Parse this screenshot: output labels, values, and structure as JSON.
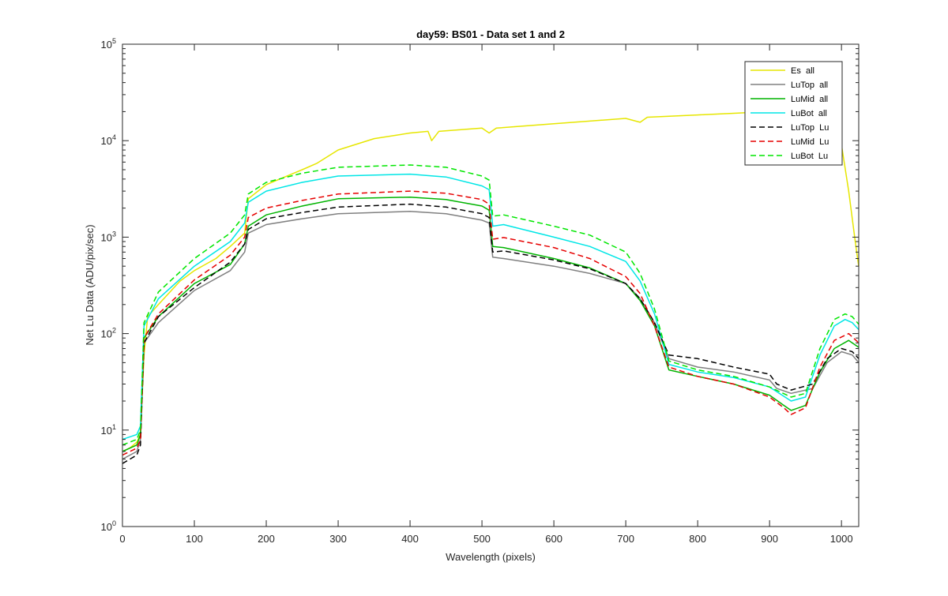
{
  "chart_data": {
    "type": "line",
    "title": "day59: BS01 - Data set 1 and 2",
    "xlabel": "Wavelength (pixels)",
    "ylabel": "Net Lu Data (ADU/pix/sec)",
    "xlim": [
      0,
      1024
    ],
    "ylim": [
      1,
      100000
    ],
    "yscale": "log",
    "xticks": [
      0,
      100,
      200,
      300,
      400,
      500,
      600,
      700,
      800,
      900,
      1000
    ],
    "yticks": [
      {
        "value": 1,
        "base": "10",
        "exp": "0"
      },
      {
        "value": 10,
        "base": "10",
        "exp": "1"
      },
      {
        "value": 100,
        "base": "10",
        "exp": "2"
      },
      {
        "value": 1000,
        "base": "10",
        "exp": "3"
      },
      {
        "value": 10000,
        "base": "10",
        "exp": "4"
      },
      {
        "value": 100000,
        "base": "10",
        "exp": "5"
      }
    ],
    "grid": false,
    "legend_position": "top-right",
    "series": [
      {
        "name": "Es  all",
        "color": "#e6e600",
        "dash": "solid",
        "points": [
          [
            0,
            6
          ],
          [
            10,
            6.5
          ],
          [
            20,
            7.5
          ],
          [
            25,
            9
          ],
          [
            30,
            60
          ],
          [
            35,
            150
          ],
          [
            50,
            200
          ],
          [
            80,
            350
          ],
          [
            100,
            450
          ],
          [
            130,
            600
          ],
          [
            150,
            800
          ],
          [
            170,
            1100
          ],
          [
            175,
            2500
          ],
          [
            200,
            3500
          ],
          [
            250,
            5000
          ],
          [
            270,
            5800
          ],
          [
            300,
            8000
          ],
          [
            350,
            10500
          ],
          [
            400,
            12000
          ],
          [
            425,
            12500
          ],
          [
            430,
            10000
          ],
          [
            440,
            12500
          ],
          [
            500,
            13500
          ],
          [
            510,
            12000
          ],
          [
            520,
            13500
          ],
          [
            600,
            15000
          ],
          [
            700,
            17000
          ],
          [
            720,
            15500
          ],
          [
            730,
            17500
          ],
          [
            800,
            18500
          ],
          [
            900,
            20000
          ],
          [
            950,
            20500
          ],
          [
            990,
            14000
          ],
          [
            1000,
            9000
          ],
          [
            1010,
            3000
          ],
          [
            1020,
            800
          ],
          [
            1024,
            500
          ]
        ]
      },
      {
        "name": "LuTop  all",
        "color": "#808080",
        "dash": "solid",
        "points": [
          [
            0,
            5
          ],
          [
            20,
            6
          ],
          [
            25,
            8
          ],
          [
            30,
            80
          ],
          [
            50,
            130
          ],
          [
            100,
            280
          ],
          [
            150,
            450
          ],
          [
            170,
            700
          ],
          [
            175,
            1100
          ],
          [
            200,
            1350
          ],
          [
            250,
            1550
          ],
          [
            300,
            1750
          ],
          [
            400,
            1850
          ],
          [
            450,
            1750
          ],
          [
            500,
            1500
          ],
          [
            510,
            1400
          ],
          [
            515,
            620
          ],
          [
            530,
            600
          ],
          [
            600,
            500
          ],
          [
            650,
            420
          ],
          [
            700,
            330
          ],
          [
            720,
            230
          ],
          [
            740,
            130
          ],
          [
            760,
            55
          ],
          [
            800,
            45
          ],
          [
            850,
            40
          ],
          [
            900,
            33
          ],
          [
            910,
            27
          ],
          [
            930,
            24
          ],
          [
            960,
            27
          ],
          [
            980,
            50
          ],
          [
            1000,
            65
          ],
          [
            1015,
            60
          ],
          [
            1024,
            50
          ]
        ]
      },
      {
        "name": "LuMid  all",
        "color": "#00b400",
        "dash": "solid",
        "points": [
          [
            0,
            6
          ],
          [
            20,
            7
          ],
          [
            25,
            9
          ],
          [
            30,
            90
          ],
          [
            50,
            150
          ],
          [
            100,
            330
          ],
          [
            150,
            520
          ],
          [
            170,
            850
          ],
          [
            175,
            1300
          ],
          [
            200,
            1700
          ],
          [
            250,
            2100
          ],
          [
            300,
            2500
          ],
          [
            400,
            2600
          ],
          [
            450,
            2450
          ],
          [
            500,
            2100
          ],
          [
            510,
            1900
          ],
          [
            515,
            800
          ],
          [
            530,
            780
          ],
          [
            600,
            600
          ],
          [
            650,
            480
          ],
          [
            700,
            330
          ],
          [
            720,
            220
          ],
          [
            740,
            120
          ],
          [
            760,
            42
          ],
          [
            800,
            36
          ],
          [
            850,
            30
          ],
          [
            900,
            23
          ],
          [
            920,
            18
          ],
          [
            930,
            16
          ],
          [
            950,
            18
          ],
          [
            970,
            40
          ],
          [
            990,
            70
          ],
          [
            1010,
            85
          ],
          [
            1024,
            72
          ]
        ]
      },
      {
        "name": "LuBot  all",
        "color": "#00e6e6",
        "dash": "solid",
        "points": [
          [
            0,
            8
          ],
          [
            20,
            9
          ],
          [
            25,
            11
          ],
          [
            30,
            120
          ],
          [
            50,
            230
          ],
          [
            100,
            500
          ],
          [
            150,
            900
          ],
          [
            170,
            1400
          ],
          [
            175,
            2300
          ],
          [
            200,
            3000
          ],
          [
            250,
            3700
          ],
          [
            300,
            4300
          ],
          [
            400,
            4500
          ],
          [
            450,
            4200
          ],
          [
            500,
            3400
          ],
          [
            510,
            3100
          ],
          [
            515,
            1300
          ],
          [
            530,
            1350
          ],
          [
            600,
            1000
          ],
          [
            650,
            800
          ],
          [
            700,
            560
          ],
          [
            720,
            350
          ],
          [
            740,
            160
          ],
          [
            760,
            48
          ],
          [
            800,
            40
          ],
          [
            850,
            35
          ],
          [
            900,
            28
          ],
          [
            930,
            20
          ],
          [
            950,
            22
          ],
          [
            970,
            60
          ],
          [
            990,
            120
          ],
          [
            1005,
            140
          ],
          [
            1015,
            130
          ],
          [
            1024,
            110
          ]
        ]
      },
      {
        "name": "LuTop  Lu",
        "color": "#000000",
        "dash": "dashed",
        "points": [
          [
            0,
            4.5
          ],
          [
            20,
            5.5
          ],
          [
            25,
            7
          ],
          [
            30,
            80
          ],
          [
            50,
            150
          ],
          [
            100,
            300
          ],
          [
            150,
            550
          ],
          [
            170,
            850
          ],
          [
            175,
            1200
          ],
          [
            200,
            1550
          ],
          [
            250,
            1800
          ],
          [
            300,
            2050
          ],
          [
            400,
            2200
          ],
          [
            450,
            2050
          ],
          [
            500,
            1750
          ],
          [
            510,
            1600
          ],
          [
            515,
            700
          ],
          [
            530,
            720
          ],
          [
            600,
            580
          ],
          [
            650,
            470
          ],
          [
            700,
            330
          ],
          [
            720,
            230
          ],
          [
            740,
            130
          ],
          [
            760,
            60
          ],
          [
            800,
            55
          ],
          [
            850,
            45
          ],
          [
            900,
            38
          ],
          [
            910,
            30
          ],
          [
            930,
            26
          ],
          [
            960,
            30
          ],
          [
            980,
            55
          ],
          [
            1000,
            70
          ],
          [
            1015,
            65
          ],
          [
            1024,
            55
          ]
        ]
      },
      {
        "name": "LuMid  Lu",
        "color": "#e60000",
        "dash": "dashed",
        "points": [
          [
            0,
            5.5
          ],
          [
            20,
            6.5
          ],
          [
            25,
            8
          ],
          [
            30,
            90
          ],
          [
            50,
            160
          ],
          [
            100,
            360
          ],
          [
            150,
            650
          ],
          [
            170,
            1000
          ],
          [
            175,
            1600
          ],
          [
            200,
            2000
          ],
          [
            250,
            2400
          ],
          [
            300,
            2800
          ],
          [
            400,
            3000
          ],
          [
            450,
            2850
          ],
          [
            500,
            2450
          ],
          [
            510,
            2200
          ],
          [
            515,
            950
          ],
          [
            530,
            990
          ],
          [
            600,
            780
          ],
          [
            650,
            600
          ],
          [
            700,
            390
          ],
          [
            720,
            260
          ],
          [
            740,
            120
          ],
          [
            760,
            45
          ],
          [
            800,
            36
          ],
          [
            850,
            30
          ],
          [
            900,
            22
          ],
          [
            920,
            17
          ],
          [
            930,
            14.5
          ],
          [
            950,
            17
          ],
          [
            970,
            45
          ],
          [
            990,
            85
          ],
          [
            1010,
            100
          ],
          [
            1024,
            80
          ]
        ]
      },
      {
        "name": "LuBot  Lu",
        "color": "#00e600",
        "dash": "dashed",
        "points": [
          [
            0,
            7
          ],
          [
            20,
            8
          ],
          [
            25,
            10
          ],
          [
            30,
            130
          ],
          [
            50,
            270
          ],
          [
            100,
            600
          ],
          [
            150,
            1100
          ],
          [
            170,
            1700
          ],
          [
            175,
            2800
          ],
          [
            200,
            3700
          ],
          [
            250,
            4600
          ],
          [
            300,
            5300
          ],
          [
            400,
            5600
          ],
          [
            450,
            5300
          ],
          [
            500,
            4300
          ],
          [
            510,
            3900
          ],
          [
            515,
            1650
          ],
          [
            530,
            1700
          ],
          [
            600,
            1300
          ],
          [
            650,
            1050
          ],
          [
            700,
            700
          ],
          [
            720,
            420
          ],
          [
            740,
            180
          ],
          [
            760,
            52
          ],
          [
            800,
            42
          ],
          [
            850,
            36
          ],
          [
            900,
            28
          ],
          [
            930,
            22
          ],
          [
            950,
            24
          ],
          [
            970,
            70
          ],
          [
            990,
            140
          ],
          [
            1005,
            160
          ],
          [
            1015,
            150
          ],
          [
            1024,
            125
          ]
        ]
      }
    ]
  }
}
